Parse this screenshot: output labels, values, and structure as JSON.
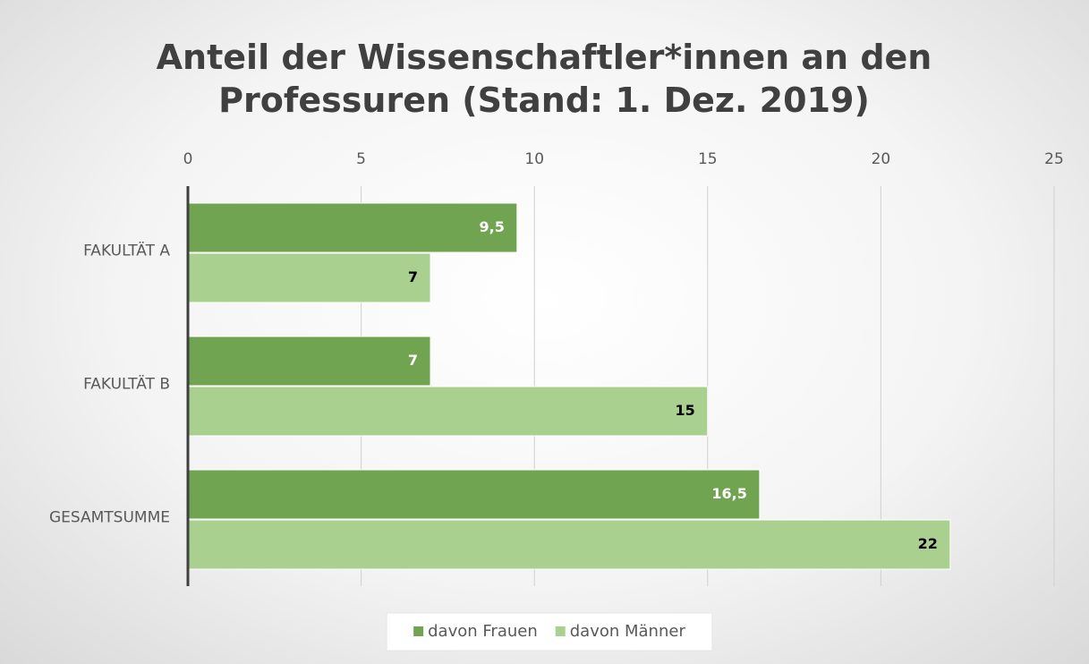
{
  "chart_data": {
    "type": "hbar",
    "title": "Anteil der Wissenschaftler*innen an den Professuren (Stand: 1. Dez. 2019)",
    "categories": [
      "FAKULTÄT A",
      "FAKULTÄT B",
      "GESAMTSUMME"
    ],
    "series": [
      {
        "name": "davon Frauen",
        "color": "#70a450",
        "label_color": "#ffffff",
        "values": [
          9.5,
          7,
          16.5
        ],
        "value_labels": [
          "9,5",
          "7",
          "16,5"
        ]
      },
      {
        "name": "davon Männer",
        "color": "#a9d08e",
        "label_color": "#000000",
        "values": [
          7,
          15,
          22
        ],
        "value_labels": [
          "7",
          "15",
          "22"
        ]
      }
    ],
    "xlim": [
      0,
      25
    ],
    "xticks": [
      0,
      5,
      10,
      15,
      20,
      25
    ],
    "grid": true,
    "legend": "bottom"
  }
}
